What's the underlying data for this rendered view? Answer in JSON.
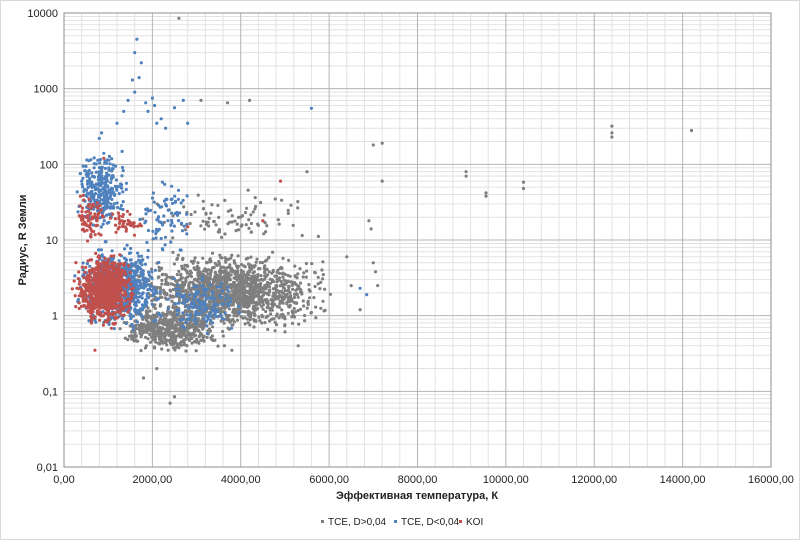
{
  "chart_data": {
    "type": "scatter",
    "title": "",
    "xlabel": "Эффективная температура, К",
    "ylabel": "Радиус, R Земли",
    "xlim": [
      0,
      16000
    ],
    "ylim": [
      0.01,
      10000
    ],
    "y_scale": "log",
    "x_ticks": [
      {
        "v": 0,
        "label": "0,00"
      },
      {
        "v": 2000,
        "label": "2000,00"
      },
      {
        "v": 4000,
        "label": "4000,00"
      },
      {
        "v": 6000,
        "label": "6000,00"
      },
      {
        "v": 8000,
        "label": "8000,00"
      },
      {
        "v": 10000,
        "label": "10000,00"
      },
      {
        "v": 12000,
        "label": "12000,00"
      },
      {
        "v": 14000,
        "label": "14000,00"
      },
      {
        "v": 16000,
        "label": "16000,00"
      }
    ],
    "y_ticks": [
      {
        "v": 0.01,
        "label": "0,01"
      },
      {
        "v": 0.1,
        "label": "0,1"
      },
      {
        "v": 1,
        "label": "1"
      },
      {
        "v": 10,
        "label": "10"
      },
      {
        "v": 100,
        "label": "100"
      },
      {
        "v": 1000,
        "label": "1000"
      },
      {
        "v": 10000,
        "label": "10000"
      }
    ],
    "grid": {
      "x_major": true,
      "x_minor": true,
      "y_major": true,
      "y_minor": true
    },
    "legend_position": "bottom",
    "series": [
      {
        "name": "TCE, D>0,04",
        "color": "#7f7f7f",
        "points": [
          [
            2600,
            8500
          ],
          [
            2400,
            0.07
          ],
          [
            2500,
            0.085
          ],
          [
            1800,
            0.15
          ],
          [
            2100,
            0.2
          ],
          [
            12400,
            230
          ],
          [
            12400,
            260
          ],
          [
            12400,
            320
          ],
          [
            14200,
            280
          ],
          [
            9100,
            70
          ],
          [
            9100,
            80
          ],
          [
            9550,
            38
          ],
          [
            9550,
            42
          ],
          [
            10400,
            48
          ],
          [
            10400,
            58
          ],
          [
            7200,
            190
          ],
          [
            7200,
            60
          ],
          [
            7000,
            180
          ],
          [
            5500,
            80
          ],
          [
            6900,
            18
          ],
          [
            6950,
            14
          ],
          [
            7050,
            3.8
          ],
          [
            7100,
            2.5
          ],
          [
            7000,
            5
          ],
          [
            6700,
            1.2
          ],
          [
            6500,
            2.5
          ],
          [
            6400,
            6
          ],
          [
            5600,
            1.1
          ],
          [
            5300,
            0.4
          ],
          [
            3800,
            0.35
          ],
          [
            4200,
            700
          ],
          [
            3700,
            650
          ],
          [
            3100,
            700
          ]
        ],
        "clusters": [
          {
            "x": [
              1200,
              6300
            ],
            "logy": [
              -0.3,
              0.92
            ],
            "n": 1500
          },
          {
            "x": [
              1000,
              3800
            ],
            "logy": [
              -0.55,
              0.2
            ],
            "n": 500
          },
          {
            "x": [
              1500,
              6000
            ],
            "logy": [
              0.9,
              1.7
            ],
            "n": 90
          }
        ]
      },
      {
        "name": "TCE, D<0,04",
        "color": "#4f81bd",
        "points": [
          [
            1650,
            4500
          ],
          [
            1600,
            3000
          ],
          [
            1750,
            2200
          ],
          [
            1700,
            1400
          ],
          [
            1550,
            1300
          ],
          [
            1600,
            900
          ],
          [
            1850,
            650
          ],
          [
            1900,
            500
          ],
          [
            2100,
            350
          ],
          [
            2050,
            600
          ],
          [
            2000,
            750
          ],
          [
            1450,
            700
          ],
          [
            2500,
            560
          ],
          [
            2800,
            350
          ],
          [
            2700,
            700
          ],
          [
            2200,
            400
          ],
          [
            2300,
            300
          ],
          [
            5600,
            550
          ],
          [
            6700,
            2.3
          ],
          [
            6850,
            1.9
          ],
          [
            800,
            220
          ],
          [
            850,
            260
          ],
          [
            900,
            140
          ],
          [
            1200,
            350
          ],
          [
            1350,
            500
          ]
        ],
        "clusters": [
          {
            "x": [
              200,
              1500
            ],
            "logy": [
              1.0,
              2.3
            ],
            "n": 300
          },
          {
            "x": [
              150,
              2400
            ],
            "logy": [
              -0.25,
              1.0
            ],
            "n": 800
          },
          {
            "x": [
              2000,
              4200
            ],
            "logy": [
              -0.3,
              0.6
            ],
            "n": 150
          },
          {
            "x": [
              1500,
              3200
            ],
            "logy": [
              0.6,
              2.0
            ],
            "n": 80
          }
        ]
      },
      {
        "name": "KOI",
        "color": "#c0504d",
        "points": [
          [
            4500,
            18
          ],
          [
            4900,
            60
          ],
          [
            2800,
            15
          ],
          [
            700,
            0.35
          ],
          [
            900,
            120
          ]
        ],
        "clusters": [
          {
            "x": [
              150,
              1700
            ],
            "logy": [
              -0.2,
              0.9
            ],
            "n": 900
          },
          {
            "x": [
              200,
              1000
            ],
            "logy": [
              0.9,
              1.7
            ],
            "n": 80
          },
          {
            "x": [
              800,
              2000
            ],
            "logy": [
              1.0,
              1.5
            ],
            "n": 40
          }
        ]
      }
    ]
  }
}
